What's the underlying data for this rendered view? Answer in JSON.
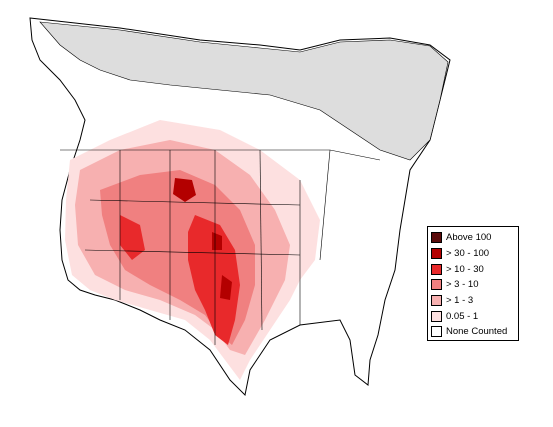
{
  "legend": {
    "items": [
      {
        "label": "Above 100",
        "color": "#5a0b0b"
      },
      {
        "label": "> 30 - 100",
        "color": "#b30000"
      },
      {
        "label": "> 10 - 30",
        "color": "#e8292b"
      },
      {
        "label": "> 3 - 10",
        "color": "#f08080"
      },
      {
        "label": "> 1 - 3",
        "color": "#f7b0b0"
      },
      {
        "label": "0.05 - 1",
        "color": "#fde0e0"
      },
      {
        "label": "None Counted",
        "color": "#ffffff"
      }
    ]
  },
  "colors": {
    "not_surveyed": "#dddddd",
    "land": "#ffffff",
    "boundary": "#000000"
  }
}
